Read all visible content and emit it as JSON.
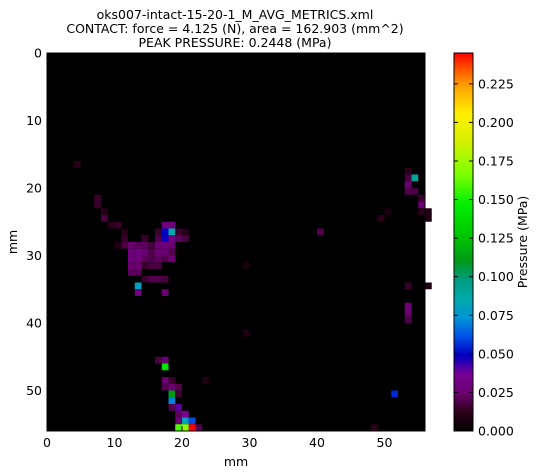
{
  "chart_data": {
    "type": "heatmap",
    "title_lines": [
      "oks007-intact-15-20-1_M_AVG_METRICS.xml",
      "CONTACT: force = 4.125 (N), area = 162.903 (mm^2)",
      "PEAK PRESSURE: 0.2448 (MPa)"
    ],
    "xlabel": "mm",
    "ylabel": "mm",
    "xlim": [
      0,
      56
    ],
    "ylim": [
      0,
      56
    ],
    "y_inverted": true,
    "x_ticks": [
      "0",
      "10",
      "20",
      "30",
      "40",
      "50"
    ],
    "y_ticks": [
      "0",
      "10",
      "20",
      "30",
      "40",
      "50"
    ],
    "colorbar": {
      "label": "Pressure (MPa)",
      "range": [
        0,
        0.245
      ],
      "ticks": [
        "0.000",
        "0.025",
        "0.050",
        "0.075",
        "0.100",
        "0.125",
        "0.150",
        "0.175",
        "0.200",
        "0.225"
      ]
    },
    "grid": false,
    "background_value": 0,
    "cell_size_mm": 1,
    "cells": [
      [
        4,
        16,
        0.012
      ],
      [
        7,
        21,
        0.015
      ],
      [
        7,
        22,
        0.015
      ],
      [
        8,
        23,
        0.012
      ],
      [
        8,
        24,
        0.018
      ],
      [
        9,
        25,
        0.012
      ],
      [
        10,
        25,
        0.015
      ],
      [
        11,
        26,
        0.012
      ],
      [
        11,
        27,
        0.015
      ],
      [
        10,
        28,
        0.01
      ],
      [
        11,
        28,
        0.018
      ],
      [
        12,
        28,
        0.025
      ],
      [
        12,
        29,
        0.028
      ],
      [
        12,
        30,
        0.028
      ],
      [
        12,
        31,
        0.025
      ],
      [
        12,
        32,
        0.022
      ],
      [
        13,
        28,
        0.022
      ],
      [
        13,
        29,
        0.03
      ],
      [
        13,
        30,
        0.028
      ],
      [
        13,
        31,
        0.025
      ],
      [
        13,
        32,
        0.022
      ],
      [
        14,
        27,
        0.015
      ],
      [
        14,
        28,
        0.022
      ],
      [
        14,
        29,
        0.025
      ],
      [
        14,
        30,
        0.022
      ],
      [
        14,
        31,
        0.015
      ],
      [
        14,
        33,
        0.015
      ],
      [
        15,
        28,
        0.018
      ],
      [
        15,
        29,
        0.02
      ],
      [
        15,
        30,
        0.02
      ],
      [
        15,
        31,
        0.018
      ],
      [
        15,
        33,
        0.02
      ],
      [
        16,
        26,
        0.015
      ],
      [
        16,
        27,
        0.02
      ],
      [
        16,
        28,
        0.025
      ],
      [
        16,
        29,
        0.025
      ],
      [
        16,
        30,
        0.022
      ],
      [
        16,
        31,
        0.018
      ],
      [
        16,
        33,
        0.02
      ],
      [
        17,
        25,
        0.028
      ],
      [
        17,
        26,
        0.05
      ],
      [
        17,
        27,
        0.048
      ],
      [
        17,
        28,
        0.03
      ],
      [
        17,
        29,
        0.025
      ],
      [
        17,
        30,
        0.02
      ],
      [
        17,
        33,
        0.018
      ],
      [
        18,
        25,
        0.028
      ],
      [
        18,
        26,
        0.085
      ],
      [
        18,
        27,
        0.03
      ],
      [
        18,
        28,
        0.025
      ],
      [
        18,
        29,
        0.02
      ],
      [
        18,
        30,
        0.025
      ],
      [
        19,
        27,
        0.022
      ],
      [
        19,
        26,
        0.015
      ],
      [
        20,
        26,
        0.012
      ],
      [
        20,
        27,
        0.018
      ],
      [
        13,
        34,
        0.08
      ],
      [
        13,
        35,
        0.03
      ],
      [
        17,
        35,
        0.025
      ],
      [
        14,
        27,
        0.015
      ],
      [
        29,
        31,
        0.008
      ],
      [
        29,
        41,
        0.01
      ],
      [
        40,
        26,
        0.02
      ],
      [
        53,
        17,
        0.012
      ],
      [
        53,
        18,
        0.018
      ],
      [
        53,
        19,
        0.025
      ],
      [
        53,
        20,
        0.02
      ],
      [
        54,
        18,
        0.09
      ],
      [
        54,
        20,
        0.018
      ],
      [
        55,
        21,
        0.015
      ],
      [
        55,
        22,
        0.025
      ],
      [
        55,
        23,
        0.012
      ],
      [
        56,
        23,
        0.01
      ],
      [
        56,
        24,
        0.01
      ],
      [
        49,
        24,
        0.012
      ],
      [
        50,
        23,
        0.008
      ],
      [
        53,
        34,
        0.015
      ],
      [
        56,
        34,
        0.01
      ],
      [
        53,
        37,
        0.028
      ],
      [
        53,
        38,
        0.025
      ],
      [
        53,
        39,
        0.02
      ],
      [
        16,
        45,
        0.018
      ],
      [
        17,
        45,
        0.025
      ],
      [
        17,
        46,
        0.14
      ],
      [
        17,
        48,
        0.025
      ],
      [
        17,
        49,
        0.02
      ],
      [
        18,
        48,
        0.015
      ],
      [
        18,
        49,
        0.025
      ],
      [
        18,
        50,
        0.11
      ],
      [
        18,
        51,
        0.07
      ],
      [
        18,
        52,
        0.02
      ],
      [
        19,
        49,
        0.02
      ],
      [
        19,
        50,
        0.015
      ],
      [
        19,
        52,
        0.04
      ],
      [
        19,
        53,
        0.022
      ],
      [
        19,
        54,
        0.025
      ],
      [
        19,
        55,
        0.16
      ],
      [
        20,
        53,
        0.035
      ],
      [
        20,
        54,
        0.08
      ],
      [
        20,
        55,
        0.17
      ],
      [
        21,
        54,
        0.06
      ],
      [
        21,
        55,
        0.245
      ],
      [
        22,
        55,
        0.02
      ],
      [
        23,
        48,
        0.01
      ],
      [
        51,
        50,
        0.055
      ],
      [
        48,
        55,
        0.012
      ]
    ]
  }
}
